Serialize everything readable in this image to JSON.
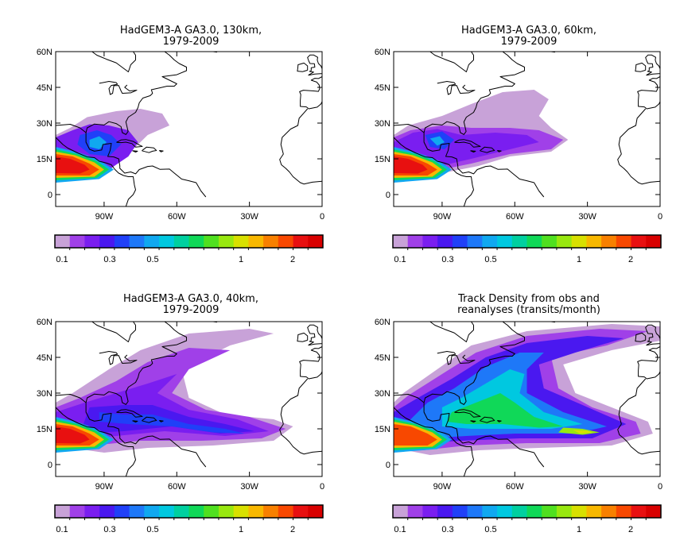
{
  "panels": [
    {
      "title1": "HadGEM3-A GA3.0, 130km,",
      "title2": "1979-2009",
      "level": 0
    },
    {
      "title1": "HadGEM3-A GA3.0, 60km,",
      "title2": "1979-2009",
      "level": 1
    },
    {
      "title1": "HadGEM3-A GA3.0, 40km,",
      "title2": "1979-2009",
      "level": 2
    },
    {
      "title1": "Track Density from obs and",
      "title2": "reanalyses (transits/month)",
      "level": 3
    }
  ],
  "lat_labels": [
    "60N",
    "45N",
    "30N",
    "15N",
    "0"
  ],
  "lon_labels": [
    "90W",
    "60W",
    "30W",
    "0"
  ],
  "colorbar": {
    "colors": [
      "#c8a2d8",
      "#a040e8",
      "#7a1ef0",
      "#4a18f0",
      "#2040f8",
      "#1e78f8",
      "#10a8f0",
      "#00c8e0",
      "#00d0a0",
      "#10d858",
      "#50e020",
      "#98e810",
      "#d8e000",
      "#f8b800",
      "#f88000",
      "#f84800",
      "#e81010",
      "#d80000"
    ],
    "tick_labels": [
      "0.1",
      "0.3",
      "0.5",
      "1",
      "2"
    ]
  }
}
